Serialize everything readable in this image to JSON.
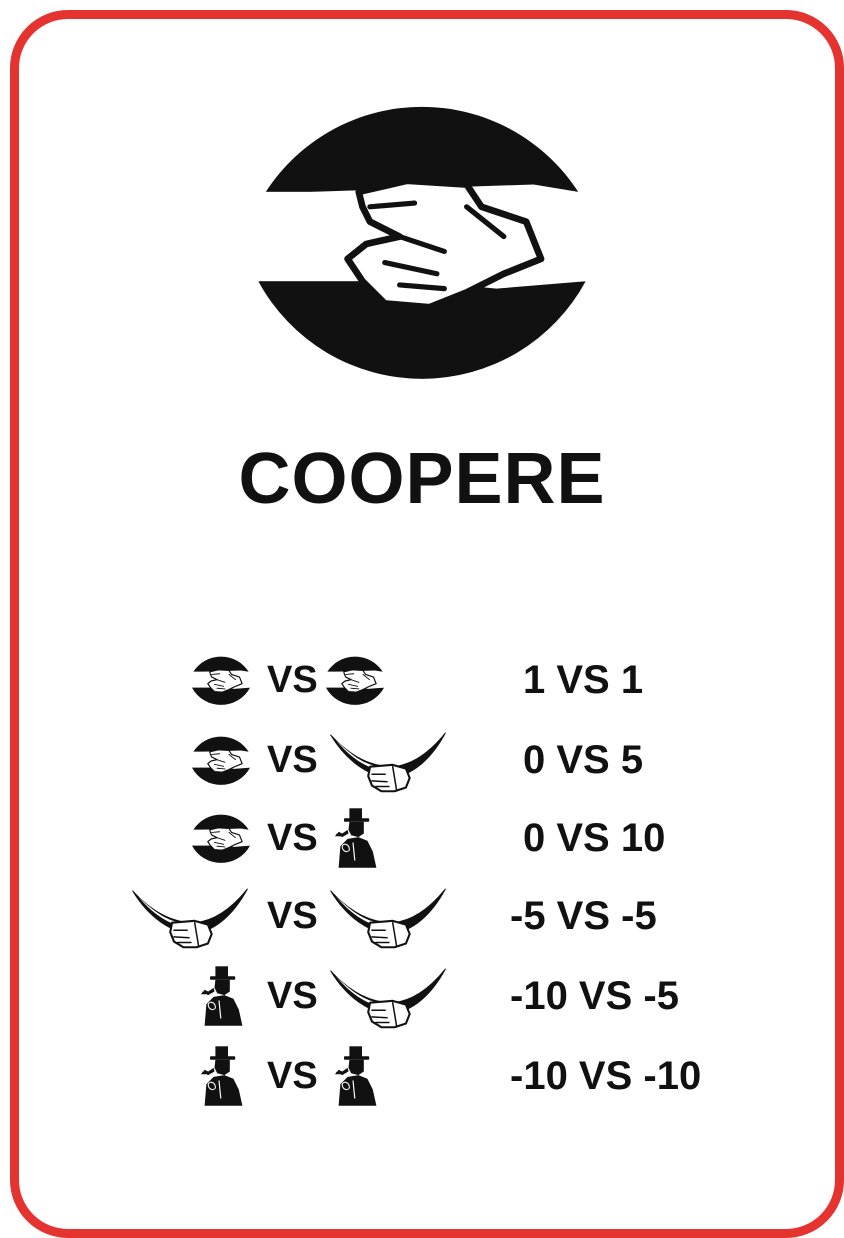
{
  "card": {
    "title": "COOPERE",
    "border_color": "#e53330",
    "emblem": "handshake-icon"
  },
  "outcomes": [
    {
      "left": "handshake-icon",
      "vs": "VS",
      "right": "handshake-icon",
      "score": "1 VS 1"
    },
    {
      "left": "handshake-icon",
      "vs": "VS",
      "right": "knife-icon",
      "score": "0 VS 5"
    },
    {
      "left": "handshake-icon",
      "vs": "VS",
      "right": "spy-icon",
      "score": "0 VS 10"
    },
    {
      "left": "knife-icon",
      "vs": "VS",
      "right": "knife-icon",
      "score": "-5 VS -5"
    },
    {
      "left": "spy-icon",
      "vs": "VS",
      "right": "knife-icon",
      "score": "-10 VS -5"
    },
    {
      "left": "spy-icon",
      "vs": "VS",
      "right": "spy-icon",
      "score": "-10 VS -10"
    }
  ]
}
